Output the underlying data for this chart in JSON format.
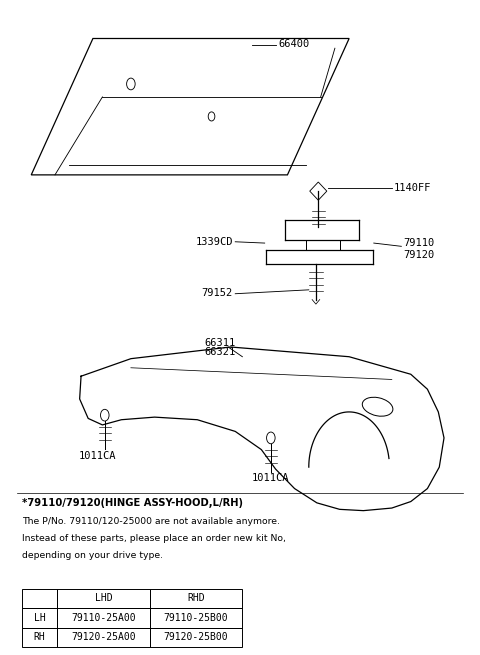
{
  "bg_color": "#ffffff",
  "line_color": "#000000",
  "note_bold": "*79110/79120(HINGE ASSY-HOOD,L/RH)",
  "note_lines": [
    "The P/No. 79110/120-25000 are not available anymore.",
    "Instead of these parts, please place an order new kit No,",
    "depending on your drive type."
  ],
  "table": {
    "headers": [
      "",
      "LHD",
      "RHD"
    ],
    "rows": [
      [
        "LH",
        "79110-25A00",
        "79110-25B00"
      ],
      [
        "RH",
        "79120-25A00",
        "79120-25B00"
      ]
    ]
  },
  "font_size_label": 7.5,
  "font_size_note": 7.2,
  "font_size_table": 7.0
}
